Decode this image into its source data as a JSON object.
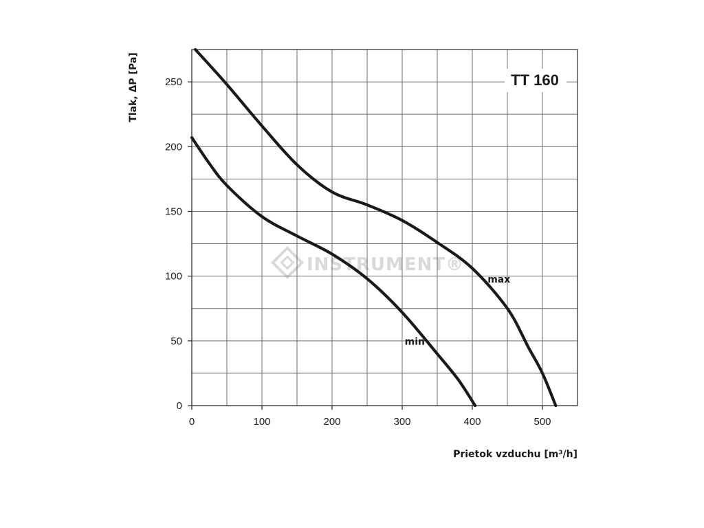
{
  "chart_data": {
    "type": "line",
    "title": "TT 160",
    "xlabel": "Prietok vzduchu  [m³/h]",
    "ylabel": "Tlak, ΔP [Pa]",
    "xlim": [
      0,
      550
    ],
    "ylim": [
      0,
      275
    ],
    "xticks": [
      0,
      100,
      200,
      300,
      400,
      500
    ],
    "yticks": [
      0,
      50,
      100,
      150,
      200,
      250
    ],
    "grid": true,
    "grid_step": {
      "x": 50,
      "y": 25
    },
    "watermark": "INSTRUMENT®",
    "series": [
      {
        "name": "max",
        "x": [
          5,
          50,
          100,
          150,
          200,
          250,
          300,
          350,
          400,
          450,
          480,
          500,
          519
        ],
        "y": [
          275,
          248,
          216,
          186,
          165,
          155,
          143,
          126,
          106,
          75,
          45,
          25,
          0
        ]
      },
      {
        "name": "min",
        "x": [
          0,
          25,
          50,
          100,
          150,
          200,
          250,
          300,
          350,
          380,
          404
        ],
        "y": [
          207,
          187,
          170,
          146,
          131,
          117,
          98,
          72,
          40,
          20,
          0
        ]
      }
    ]
  }
}
